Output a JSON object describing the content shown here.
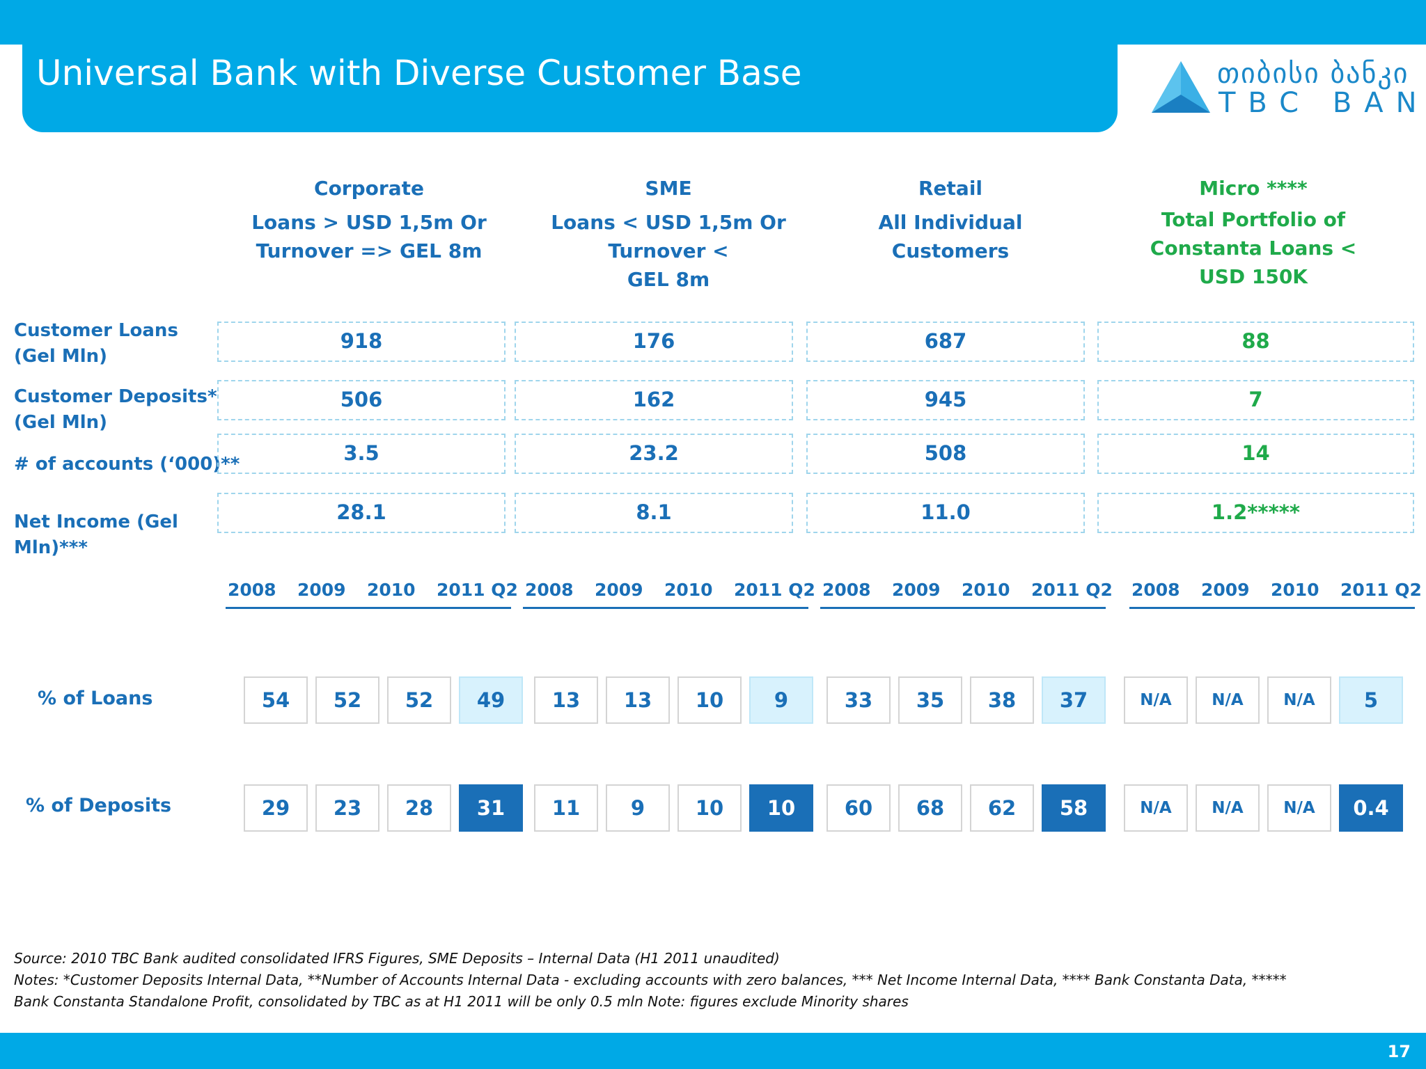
{
  "header": {
    "title": "Universal Bank with Diverse Customer Base",
    "logo": {
      "georgian_text": "თიბისი ბანკი",
      "english_text": "TBC BANK",
      "color": "#1a88c9"
    }
  },
  "colors": {
    "brand": "#00a9e6",
    "text_blue": "#1a6fb7",
    "micro_green": "#1faa4a",
    "dark_highlight": "#1a6fb7",
    "light_highlight": "#d8f2fd"
  },
  "segments": [
    {
      "name": "Corporate",
      "desc": [
        "Loans > USD 1,5m Or",
        "Turnover => GEL 8m"
      ]
    },
    {
      "name": "SME",
      "desc": [
        "Loans < USD 1,5m Or",
        "Turnover <",
        "GEL 8m"
      ]
    },
    {
      "name": "Retail",
      "desc": [
        "All Individual",
        "Customers"
      ]
    },
    {
      "name": "Micro ****",
      "desc": [
        "Total Portfolio of",
        "Constanta Loans <",
        "USD 150K"
      ]
    }
  ],
  "metrics": [
    {
      "label": [
        "Customer Loans",
        "(Gel Mln)"
      ],
      "values": [
        "918",
        "176",
        "687",
        "88"
      ]
    },
    {
      "label": [
        "Customer Deposits*",
        "(Gel Mln)"
      ],
      "values": [
        "506",
        "162",
        "945",
        "7"
      ]
    },
    {
      "label": [
        "# of accounts (‘000)**"
      ],
      "values": [
        "3.5",
        "23.2",
        "508",
        "14"
      ]
    },
    {
      "label": [
        "Net Income (Gel",
        "Mln)***"
      ],
      "values": [
        "28.1",
        "8.1",
        "11.0",
        "1.2*****"
      ]
    }
  ],
  "years": [
    "2008",
    "2009",
    "2010",
    "2011 Q2"
  ],
  "loans_pct": {
    "label": "% of Loans",
    "values": [
      [
        "54",
        "52",
        "52",
        "49"
      ],
      [
        "13",
        "13",
        "10",
        "9"
      ],
      [
        "33",
        "35",
        "38",
        "37"
      ],
      [
        "N/A",
        "N/A",
        "N/A",
        "5"
      ]
    ]
  },
  "deposits_pct": {
    "label": "% of Deposits",
    "values": [
      [
        "29",
        "23",
        "28",
        "31"
      ],
      [
        "11",
        "9",
        "10",
        "10"
      ],
      [
        "60",
        "68",
        "62",
        "58"
      ],
      [
        "N/A",
        "N/A",
        "N/A",
        "0.4"
      ]
    ]
  },
  "footnotes": {
    "source": "Source: 2010 TBC Bank audited consolidated IFRS Figures, SME Deposits – Internal Data (H1 2011 unaudited)",
    "notes_line1": "Notes:  *Customer Deposits Internal Data, **Number of Accounts Internal Data -  excluding accounts with zero balances, *** Net Income Internal Data, **** Bank Constanta Data, *****",
    "notes_line2": "Bank Constanta Standalone Profit, consolidated by TBC as at H1 2011 will be only 0.5 mln Note: figures exclude Minority shares"
  },
  "page_number": "17"
}
